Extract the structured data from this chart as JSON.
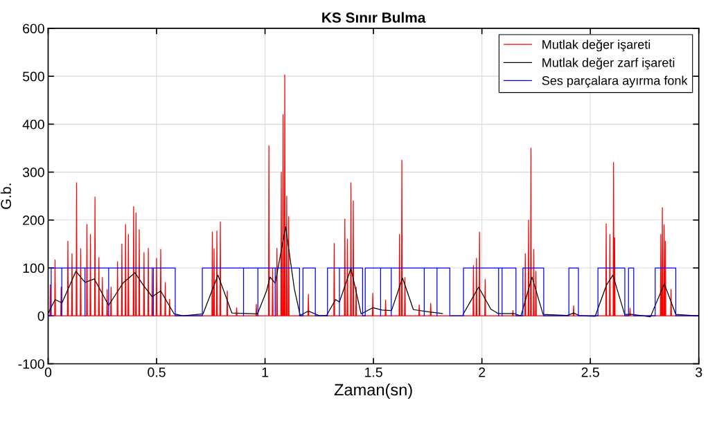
{
  "chart_data": {
    "type": "line",
    "title": "KS Sınır Bulma",
    "xlabel": "Zaman(sn)",
    "ylabel": "G.b.",
    "xlim": [
      0,
      3
    ],
    "xticks": [
      0,
      0.5,
      1,
      1.5,
      2,
      2.5,
      3
    ],
    "ylim": [
      -100,
      600
    ],
    "yticks": [
      -100,
      0,
      100,
      200,
      300,
      400,
      500,
      600
    ],
    "grid": true,
    "legend": "top right",
    "series": [
      {
        "name": "Mutlak değer işareti",
        "color": "#ff0000",
        "x": [
          0,
          0.008,
          0.01,
          0.012,
          0.03,
          0.032,
          0.034,
          0.058,
          0.06,
          0.062,
          0.089,
          0.091,
          0.093,
          0.108,
          0.11,
          0.112,
          0.129,
          0.131,
          0.133,
          0.148,
          0.15,
          0.152,
          0.177,
          0.179,
          0.181,
          0.193,
          0.195,
          0.197,
          0.214,
          0.216,
          0.218,
          0.232,
          0.234,
          0.236,
          0.248,
          0.25,
          0.252,
          0.27,
          0.272,
          0.274,
          0.288,
          0.29,
          0.292,
          0.318,
          0.32,
          0.322,
          0.338,
          0.34,
          0.342,
          0.355,
          0.357,
          0.359,
          0.368,
          0.37,
          0.372,
          0.392,
          0.394,
          0.396,
          0.403,
          0.405,
          0.407,
          0.418,
          0.42,
          0.422,
          0.44,
          0.442,
          0.444,
          0.46,
          0.462,
          0.464,
          0.478,
          0.48,
          0.482,
          0.498,
          0.5,
          0.502,
          0.517,
          0.519,
          0.521,
          0.538,
          0.54,
          0.542,
          0.558,
          0.56,
          0.562,
          0.755,
          0.757,
          0.759,
          0.763,
          0.765,
          0.767,
          0.776,
          0.778,
          0.78,
          0.792,
          0.794,
          0.796,
          0.824,
          0.826,
          0.828,
          0.867,
          0.869,
          0.871,
          0.958,
          0.96,
          0.962,
          1.016,
          1.018,
          1.02,
          1.033,
          1.035,
          1.037,
          1.053,
          1.055,
          1.057,
          1.073,
          1.075,
          1.077,
          1.081,
          1.083,
          1.085,
          1.089,
          1.091,
          1.093,
          1.098,
          1.1,
          1.102,
          1.107,
          1.109,
          1.111,
          1.198,
          1.2,
          1.202,
          1.317,
          1.319,
          1.321,
          1.366,
          1.368,
          1.37,
          1.378,
          1.38,
          1.382,
          1.394,
          1.396,
          1.398,
          1.405,
          1.407,
          1.409,
          1.418,
          1.42,
          1.422,
          1.495,
          1.497,
          1.499,
          1.554,
          1.556,
          1.558,
          1.618,
          1.62,
          1.622,
          1.629,
          1.631,
          1.633,
          1.643,
          1.645,
          1.647,
          1.709,
          1.711,
          1.713,
          1.762,
          1.764,
          1.766,
          1.959,
          1.961,
          1.963,
          1.973,
          1.975,
          1.977,
          1.987,
          1.989,
          1.991,
          2.013,
          2.015,
          2.017,
          2.141,
          2.143,
          2.145,
          2.198,
          2.2,
          2.202,
          2.213,
          2.215,
          2.217,
          2.224,
          2.226,
          2.228,
          2.237,
          2.239,
          2.241,
          2.247,
          2.249,
          2.251,
          2.421,
          2.423,
          2.425,
          2.571,
          2.573,
          2.575,
          2.588,
          2.59,
          2.592,
          2.605,
          2.607,
          2.609,
          2.61,
          2.612,
          2.614,
          2.681,
          2.683,
          2.685,
          2.823,
          2.825,
          2.827,
          2.83,
          2.832,
          2.834,
          2.838,
          2.84,
          2.842,
          2.844,
          2.846,
          2.848,
          2.87,
          2.872,
          2.874,
          3
        ],
        "values": [
          0,
          0,
          65,
          0,
          0,
          117,
          0,
          0,
          60,
          0,
          0,
          156,
          0,
          0,
          130,
          0,
          0,
          278,
          0,
          0,
          140,
          0,
          0,
          191,
          0,
          0,
          170,
          0,
          0,
          248,
          0,
          0,
          122,
          0,
          0,
          80,
          0,
          0,
          55,
          0,
          0,
          60,
          0,
          0,
          113,
          0,
          0,
          150,
          0,
          0,
          191,
          0,
          0,
          170,
          0,
          0,
          228,
          0,
          0,
          215,
          0,
          0,
          180,
          0,
          0,
          132,
          0,
          0,
          141,
          0,
          0,
          100,
          0,
          0,
          120,
          0,
          0,
          139,
          0,
          0,
          70,
          0,
          0,
          35,
          0,
          0,
          175,
          0,
          0,
          140,
          0,
          0,
          177,
          0,
          0,
          196,
          0,
          0,
          52,
          0,
          0,
          17,
          0,
          0,
          24,
          0,
          0,
          355,
          0,
          0,
          100,
          0,
          0,
          141,
          0,
          0,
          300,
          0,
          0,
          420,
          0,
          0,
          503,
          0,
          0,
          250,
          0,
          0,
          207,
          0,
          0,
          45,
          0,
          0,
          151,
          0,
          0,
          202,
          0,
          0,
          160,
          0,
          0,
          278,
          0,
          0,
          240,
          0,
          0,
          60,
          0,
          0,
          47,
          0,
          0,
          33,
          0,
          0,
          170,
          0,
          0,
          325,
          0,
          0,
          80,
          0,
          0,
          23,
          0,
          0,
          26,
          0,
          0,
          105,
          0,
          0,
          120,
          0,
          0,
          175,
          0,
          0,
          76,
          0,
          0,
          11,
          0,
          0,
          130,
          0,
          0,
          200,
          0,
          0,
          350,
          0,
          0,
          139,
          0,
          0,
          93,
          0,
          0,
          21,
          0,
          0,
          192,
          0,
          0,
          170,
          0,
          0,
          320,
          0,
          0,
          163,
          0,
          0,
          16,
          0,
          0,
          170,
          0,
          0,
          226,
          0,
          0,
          190,
          0,
          0,
          156,
          0,
          0,
          55,
          0,
          0
        ]
      },
      {
        "name": "Mutlak değer zarf işareti",
        "color": "#000000",
        "x": [
          0,
          0.014,
          0.032,
          0.064,
          0.128,
          0.17,
          0.213,
          0.279,
          0.346,
          0.4,
          0.442,
          0.48,
          0.519,
          0.581,
          0.624,
          0.714,
          0.783,
          0.847,
          0.965,
          1.007,
          1.023,
          1.047,
          1.095,
          1.135,
          1.162,
          1.2,
          1.253,
          1.284,
          1.325,
          1.343,
          1.396,
          1.443,
          1.497,
          1.54,
          1.583,
          1.634,
          1.684,
          1.759,
          1.818,
          1.86,
          1.913,
          1.985,
          2.041,
          2.074,
          2.148,
          2.18,
          2.231,
          2.282,
          2.393,
          2.423,
          2.452,
          2.522,
          2.574,
          2.604,
          2.658,
          2.692,
          2.777,
          2.841,
          2.894,
          3
        ],
        "values": [
          5,
          18,
          34,
          27,
          93,
          70,
          77,
          22,
          69,
          90,
          62,
          40,
          52,
          4,
          0,
          4,
          85,
          6,
          4,
          52,
          81,
          68,
          186,
          57,
          1,
          10,
          0,
          1,
          34,
          29,
          99,
          4,
          17,
          12,
          11,
          79,
          13,
          8,
          5,
          null,
          3,
          60,
          14,
          5,
          5,
          0,
          81,
          3,
          1,
          6,
          0,
          -1,
          64,
          85,
          3,
          3,
          -2,
          67,
          3,
          0
        ]
      },
      {
        "name": "Ses parçalara ayırma fonk",
        "color": "#0000ff",
        "x": [
          0,
          0.014,
          0.014,
          0.063,
          0.063,
          0.063,
          0.17,
          0.17,
          0.17,
          0.279,
          0.279,
          0.279,
          0.485,
          0.485,
          0.485,
          0.586,
          0.586,
          0.711,
          0.711,
          0.901,
          0.901,
          0.901,
          0.967,
          0.967,
          0.967,
          1.047,
          1.047,
          1.047,
          1.159,
          1.159,
          1.175,
          1.175,
          1.232,
          1.232,
          1.288,
          1.288,
          1.343,
          1.343,
          1.343,
          1.45,
          1.45,
          1.462,
          1.462,
          1.533,
          1.533,
          1.533,
          1.582,
          1.582,
          1.582,
          1.734,
          1.734,
          1.734,
          1.793,
          1.793,
          1.793,
          1.852,
          1.852,
          1.915,
          1.915,
          2.077,
          2.077,
          2.077,
          2.093,
          2.093,
          2.093,
          2.157,
          2.157,
          2.189,
          2.189,
          2.285,
          2.285,
          2.401,
          2.401,
          2.445,
          2.445,
          2.535,
          2.535,
          2.659,
          2.659,
          2.676,
          2.676,
          2.7,
          2.7,
          2.799,
          2.799,
          2.894,
          2.894,
          3
        ],
        "values": [
          0,
          0,
          100,
          100,
          0,
          100,
          100,
          0,
          100,
          100,
          0,
          100,
          100,
          0,
          100,
          100,
          0,
          0,
          100,
          100,
          0,
          100,
          100,
          0,
          100,
          100,
          0,
          100,
          100,
          0,
          0,
          100,
          100,
          0,
          0,
          100,
          100,
          0,
          100,
          100,
          0,
          0,
          100,
          100,
          0,
          100,
          100,
          0,
          100,
          100,
          0,
          100,
          100,
          0,
          100,
          100,
          0,
          0,
          100,
          100,
          0,
          100,
          100,
          0,
          100,
          100,
          0,
          0,
          100,
          100,
          0,
          0,
          100,
          100,
          0,
          0,
          100,
          100,
          0,
          0,
          100,
          100,
          0,
          0,
          100,
          100,
          0,
          0
        ]
      }
    ]
  }
}
